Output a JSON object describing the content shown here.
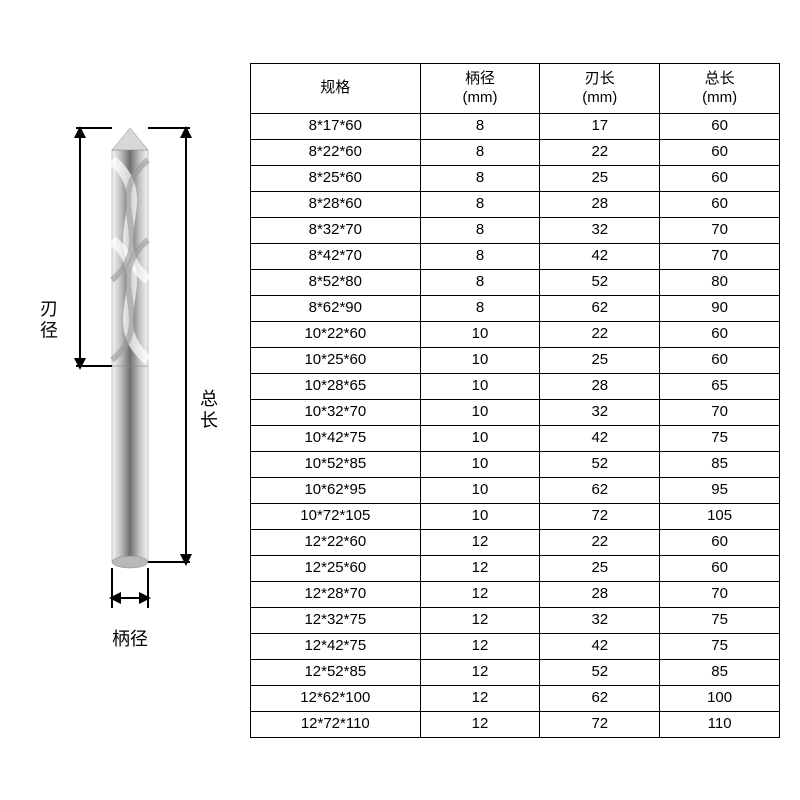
{
  "diagram": {
    "labels": {
      "cutting_diameter": "刃\n径",
      "total_length": "总\n长",
      "shank_diameter": "柄径"
    },
    "arrow_color": "#000000",
    "label_font_size": 18,
    "bit_body_gradient": [
      "#f5f5f5",
      "#bfbfbf",
      "#707070",
      "#bfbfbf",
      "#f5f5f5"
    ],
    "flute_shade": "#d8d8d8",
    "flute_highlight": "#ffffff"
  },
  "table": {
    "headers": [
      "规格",
      "柄径\n(mm)",
      "刃长\n(mm)",
      "总长\n(mm)"
    ],
    "column_widths_pct": [
      32,
      22.6,
      22.6,
      22.6
    ],
    "font_size": 15,
    "border_color": "#000000",
    "rows": [
      [
        "8*17*60",
        "8",
        "17",
        "60"
      ],
      [
        "8*22*60",
        "8",
        "22",
        "60"
      ],
      [
        "8*25*60",
        "8",
        "25",
        "60"
      ],
      [
        "8*28*60",
        "8",
        "28",
        "60"
      ],
      [
        "8*32*70",
        "8",
        "32",
        "70"
      ],
      [
        "8*42*70",
        "8",
        "42",
        "70"
      ],
      [
        "8*52*80",
        "8",
        "52",
        "80"
      ],
      [
        "8*62*90",
        "8",
        "62",
        "90"
      ],
      [
        "10*22*60",
        "10",
        "22",
        "60"
      ],
      [
        "10*25*60",
        "10",
        "25",
        "60"
      ],
      [
        "10*28*65",
        "10",
        "28",
        "65"
      ],
      [
        "10*32*70",
        "10",
        "32",
        "70"
      ],
      [
        "10*42*75",
        "10",
        "42",
        "75"
      ],
      [
        "10*52*85",
        "10",
        "52",
        "85"
      ],
      [
        "10*62*95",
        "10",
        "62",
        "95"
      ],
      [
        "10*72*105",
        "10",
        "72",
        "105"
      ],
      [
        "12*22*60",
        "12",
        "22",
        "60"
      ],
      [
        "12*25*60",
        "12",
        "25",
        "60"
      ],
      [
        "12*28*70",
        "12",
        "28",
        "70"
      ],
      [
        "12*32*75",
        "12",
        "32",
        "75"
      ],
      [
        "12*42*75",
        "12",
        "42",
        "75"
      ],
      [
        "12*52*85",
        "12",
        "52",
        "85"
      ],
      [
        "12*62*100",
        "12",
        "62",
        "100"
      ],
      [
        "12*72*110",
        "12",
        "72",
        "110"
      ]
    ]
  }
}
